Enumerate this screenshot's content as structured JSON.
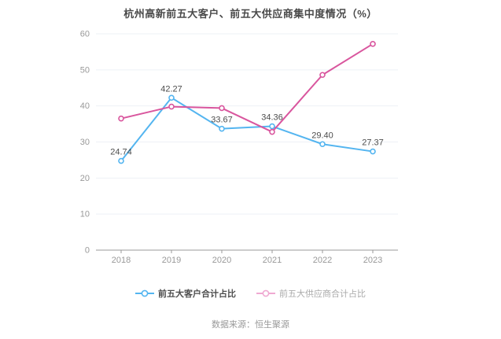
{
  "title": "杭州高新前五大客户、前五大供应商集中度情况（%）",
  "source": "数据来源：恒生聚源",
  "chart_data": {
    "type": "line",
    "title": "杭州高新前五大客户、前五大供应商集中度情况（%）",
    "categories": [
      "2018",
      "2019",
      "2020",
      "2021",
      "2022",
      "2023"
    ],
    "series": [
      {
        "name": "前五大客户合计占比",
        "color": "#54b5f0",
        "values": [
          24.74,
          42.27,
          33.67,
          34.36,
          29.4,
          27.37
        ],
        "labels": [
          "24.74",
          "42.27",
          "33.67",
          "34.36",
          "29.40",
          "27.37"
        ]
      },
      {
        "name": "前五大供应商合计占比",
        "color": "#d9569e",
        "values": [
          36.5,
          39.8,
          39.4,
          32.8,
          48.6,
          57.2
        ],
        "labels": null
      }
    ],
    "ylim": [
      0,
      60
    ],
    "yticks": [
      0,
      10,
      20,
      30,
      40,
      50,
      60
    ],
    "grid": true,
    "legend_position": "bottom",
    "colors": {
      "grid": "#edf1f6",
      "axis": "#999999",
      "axis_text": "#999999",
      "point_label": "#4d4d4d"
    }
  },
  "legend": {
    "items": [
      {
        "label": "前五大客户合计占比",
        "icon_color": "#54b5f0",
        "text_color": "#4d4d4d",
        "bold": true
      },
      {
        "label": "前五大供应商合计占比",
        "icon_color": "#efa9d2",
        "text_color": "#aaaaaa",
        "bold": false
      }
    ]
  }
}
